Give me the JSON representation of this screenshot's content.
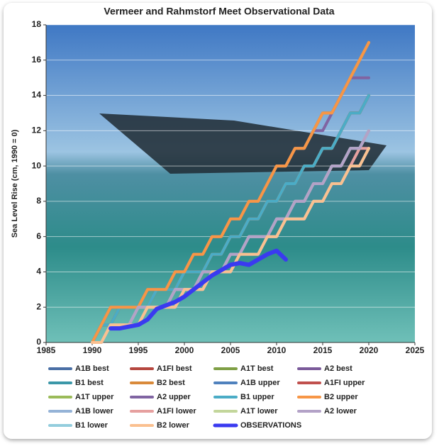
{
  "chart_data": {
    "type": "line",
    "title": "Vermeer and Rahmstorf Meet Observational Data",
    "y_label": "Sea Level Rise (cm, 1990 = 0)",
    "xlim": [
      1985,
      2025
    ],
    "xticks": [
      1985,
      1990,
      1995,
      2000,
      2005,
      2010,
      2015,
      2020,
      2025
    ],
    "ylim": [
      0,
      18
    ],
    "yticks": [
      0,
      2,
      4,
      6,
      8,
      10,
      12,
      14,
      16,
      18
    ],
    "grid": true,
    "x": [
      1990,
      1991,
      1992,
      1993,
      1994,
      1995,
      1996,
      1997,
      1998,
      1999,
      2000,
      2001,
      2002,
      2003,
      2004,
      2005,
      2006,
      2007,
      2008,
      2009,
      2010,
      2011,
      2012,
      2013,
      2014,
      2015,
      2016,
      2017,
      2018,
      2019,
      2020
    ],
    "series": [
      {
        "name": "A1B best",
        "color": "#4a6fa5",
        "values": [
          0,
          1,
          1,
          2,
          2,
          2,
          2,
          3,
          3,
          3,
          4,
          4,
          4,
          5,
          5,
          6,
          6,
          7,
          7,
          8,
          8,
          9,
          9,
          10,
          10,
          11,
          11,
          12,
          13,
          13,
          14
        ]
      },
      {
        "name": "A1FI best",
        "color": "#b5473f",
        "values": [
          0,
          1,
          1,
          2,
          2,
          2,
          2,
          3,
          3,
          3,
          4,
          4,
          4,
          5,
          5,
          6,
          6,
          7,
          7,
          8,
          8,
          9,
          9,
          10,
          10,
          11,
          11,
          12,
          13,
          13,
          14
        ]
      },
      {
        "name": "A1T best",
        "color": "#7f9f45",
        "values": [
          0,
          1,
          1,
          2,
          2,
          2,
          2,
          3,
          3,
          3,
          4,
          4,
          4,
          5,
          5,
          6,
          6,
          7,
          7,
          8,
          8,
          9,
          9,
          10,
          10,
          11,
          11,
          12,
          13,
          13,
          14
        ]
      },
      {
        "name": "A2 best",
        "color": "#7a5a9a",
        "values": [
          0,
          1,
          1,
          2,
          2,
          2,
          2,
          3,
          3,
          3,
          4,
          4,
          4,
          5,
          5,
          6,
          6,
          7,
          7,
          8,
          8,
          9,
          9,
          10,
          10,
          11,
          11,
          12,
          13,
          13,
          14
        ]
      },
      {
        "name": "B1 best",
        "color": "#3b97a8",
        "values": [
          0,
          0,
          1,
          1,
          1,
          2,
          2,
          2,
          2,
          3,
          3,
          3,
          4,
          4,
          4,
          5,
          5,
          6,
          6,
          6,
          7,
          7,
          8,
          8,
          9,
          9,
          10,
          10,
          11,
          11,
          12
        ]
      },
      {
        "name": "B2 best",
        "color": "#d98a3a",
        "values": [
          0,
          1,
          1,
          2,
          2,
          2,
          2,
          3,
          3,
          3,
          4,
          4,
          4,
          5,
          5,
          6,
          6,
          7,
          7,
          8,
          8,
          9,
          9,
          10,
          10,
          11,
          11,
          12,
          13,
          13,
          14
        ]
      },
      {
        "name": "A1B upper",
        "color": "#4f81bd",
        "values": [
          0,
          1,
          2,
          2,
          2,
          2,
          3,
          3,
          3,
          4,
          4,
          5,
          5,
          6,
          6,
          7,
          7,
          8,
          8,
          9,
          10,
          10,
          11,
          11,
          12,
          13,
          13,
          14,
          15,
          16,
          17
        ]
      },
      {
        "name": "A1FI upper",
        "color": "#c0504d",
        "values": [
          0,
          1,
          2,
          2,
          2,
          2,
          3,
          3,
          3,
          4,
          4,
          5,
          5,
          6,
          6,
          7,
          7,
          8,
          8,
          9,
          10,
          10,
          11,
          11,
          12,
          13,
          13,
          14,
          15,
          16,
          17
        ]
      },
      {
        "name": "A1T upper",
        "color": "#9bbb59",
        "values": [
          0,
          1,
          2,
          2,
          2,
          2,
          3,
          3,
          3,
          4,
          4,
          5,
          5,
          6,
          6,
          7,
          7,
          8,
          8,
          9,
          10,
          10,
          11,
          11,
          12,
          13,
          13,
          14,
          15,
          16,
          17
        ]
      },
      {
        "name": "A2 upper",
        "color": "#8064a2",
        "values": [
          0,
          1,
          2,
          2,
          2,
          2,
          3,
          3,
          3,
          4,
          4,
          5,
          5,
          6,
          6,
          7,
          7,
          8,
          8,
          9,
          10,
          10,
          11,
          11,
          12,
          12,
          13,
          14,
          15,
          15,
          15
        ]
      },
      {
        "name": "B1 upper",
        "color": "#4bacc6",
        "values": [
          0,
          1,
          1,
          2,
          2,
          2,
          2,
          3,
          3,
          3,
          4,
          4,
          4,
          5,
          5,
          6,
          6,
          7,
          7,
          8,
          8,
          9,
          9,
          10,
          10,
          11,
          11,
          12,
          13,
          13,
          14
        ]
      },
      {
        "name": "B2 upper",
        "color": "#f79646",
        "values": [
          0,
          1,
          2,
          2,
          2,
          2,
          3,
          3,
          3,
          4,
          4,
          5,
          5,
          6,
          6,
          7,
          7,
          8,
          8,
          9,
          10,
          10,
          11,
          11,
          12,
          13,
          13,
          14,
          15,
          16,
          17
        ]
      },
      {
        "name": "A1B lower",
        "color": "#95b3d7",
        "values": [
          0,
          0,
          1,
          1,
          1,
          2,
          2,
          2,
          2,
          3,
          3,
          3,
          4,
          4,
          4,
          5,
          5,
          6,
          6,
          6,
          7,
          7,
          8,
          8,
          9,
          9,
          10,
          10,
          11,
          11,
          12
        ]
      },
      {
        "name": "A1FI lower",
        "color": "#e6a09f",
        "values": [
          0,
          0,
          1,
          1,
          1,
          1,
          2,
          2,
          2,
          2,
          3,
          3,
          3,
          4,
          4,
          4,
          5,
          5,
          5,
          6,
          6,
          7,
          7,
          7,
          8,
          8,
          9,
          9,
          10,
          11,
          11
        ]
      },
      {
        "name": "A1T lower",
        "color": "#c3d69b",
        "values": [
          0,
          0,
          1,
          1,
          1,
          2,
          2,
          2,
          2,
          3,
          3,
          3,
          4,
          4,
          4,
          5,
          5,
          6,
          6,
          6,
          7,
          7,
          8,
          8,
          9,
          9,
          10,
          10,
          11,
          11,
          12
        ]
      },
      {
        "name": "A2 lower",
        "color": "#b3a2c7",
        "values": [
          0,
          0,
          1,
          1,
          1,
          2,
          2,
          2,
          2,
          3,
          3,
          3,
          4,
          4,
          4,
          5,
          5,
          6,
          6,
          6,
          7,
          7,
          8,
          8,
          9,
          9,
          10,
          10,
          11,
          11,
          12
        ]
      },
      {
        "name": "B1 lower",
        "color": "#93cddd",
        "values": [
          0,
          0,
          1,
          1,
          1,
          1,
          2,
          2,
          2,
          2,
          3,
          3,
          3,
          4,
          4,
          4,
          5,
          5,
          5,
          6,
          6,
          7,
          7,
          7,
          8,
          8,
          9,
          9,
          10,
          10,
          11
        ]
      },
      {
        "name": "B2 lower",
        "color": "#fac090",
        "values": [
          0,
          0,
          1,
          1,
          1,
          1,
          2,
          2,
          2,
          2,
          3,
          3,
          3,
          4,
          4,
          4,
          5,
          5,
          5,
          6,
          6,
          7,
          7,
          7,
          8,
          8,
          9,
          9,
          10,
          10,
          11
        ]
      },
      {
        "name": "OBSERVATIONS",
        "color": "#3a3af0",
        "x": [
          1992,
          1993,
          1994,
          1995,
          1996,
          1997,
          1998,
          1999,
          2000,
          2001,
          2002,
          2003,
          2004,
          2005,
          2006,
          2007,
          2008,
          2009,
          2010,
          2011
        ],
        "values": [
          0.8,
          0.8,
          0.9,
          1.0,
          1.3,
          1.9,
          2.1,
          2.3,
          2.6,
          3.0,
          3.4,
          3.8,
          4.1,
          4.4,
          4.5,
          4.4,
          4.7,
          5.0,
          5.2,
          4.7
        ]
      }
    ]
  }
}
